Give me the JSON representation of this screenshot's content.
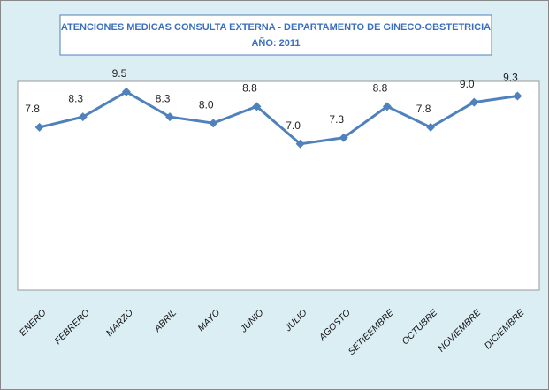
{
  "chart_data": {
    "type": "line",
    "title": "ATENCIONES MEDICAS CONSULTA EXTERNA - DEPARTAMENTO DE GINECO-OBSTETRICIA",
    "subtitle": "AÑO: 2011",
    "categories": [
      "ENERO",
      "FEBRERO",
      "MARZO",
      "ABRIL",
      "MAYO",
      "JUNIO",
      "JULIO",
      "AGOSTO",
      "SETIEEMBRE",
      "OCTUBRE",
      "NOVIEMBRE",
      "DICIEMBRE"
    ],
    "values": [
      7.8,
      8.3,
      9.5,
      8.3,
      8.0,
      8.8,
      7.0,
      7.3,
      8.8,
      7.8,
      9.0,
      9.3
    ],
    "value_labels": [
      "7.8",
      "8.3",
      "9.5",
      "8.3",
      "8.0",
      "8.8",
      "7.0",
      "7.3",
      "8.8",
      "7.8",
      "9.0",
      "9.3"
    ],
    "color": "#4f81bd",
    "ylim": [
      0,
      10
    ]
  }
}
